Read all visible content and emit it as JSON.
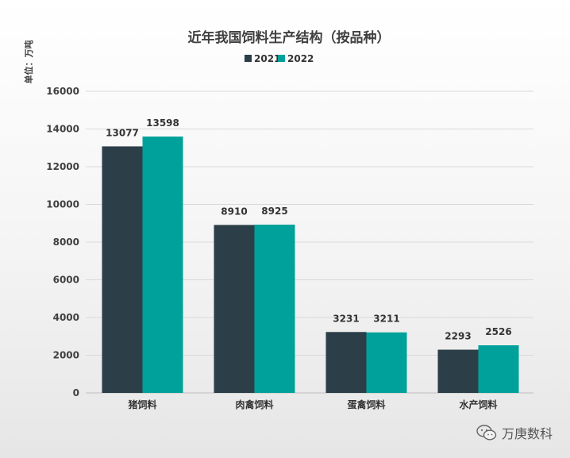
{
  "chart_data": {
    "type": "bar",
    "title": "近年我国饲料生产结构（按品种）",
    "ylabel": "单位：万吨",
    "categories": [
      "猪饲料",
      "肉禽饲料",
      "蛋禽饲料",
      "水产饲料"
    ],
    "series": [
      {
        "name": "2021",
        "color": "#2c3e48",
        "values": [
          13077,
          8910,
          3231,
          2293
        ]
      },
      {
        "name": "2022",
        "color": "#00a19a",
        "values": [
          13598,
          8925,
          3211,
          2526
        ]
      }
    ],
    "ylim": [
      0,
      16000
    ],
    "yticks": [
      0,
      2000,
      4000,
      6000,
      8000,
      10000,
      12000,
      14000,
      16000
    ],
    "grid": true,
    "legend_position": "top-center"
  },
  "watermark": {
    "icon": "wechat-icon",
    "text": "万庚数科"
  }
}
